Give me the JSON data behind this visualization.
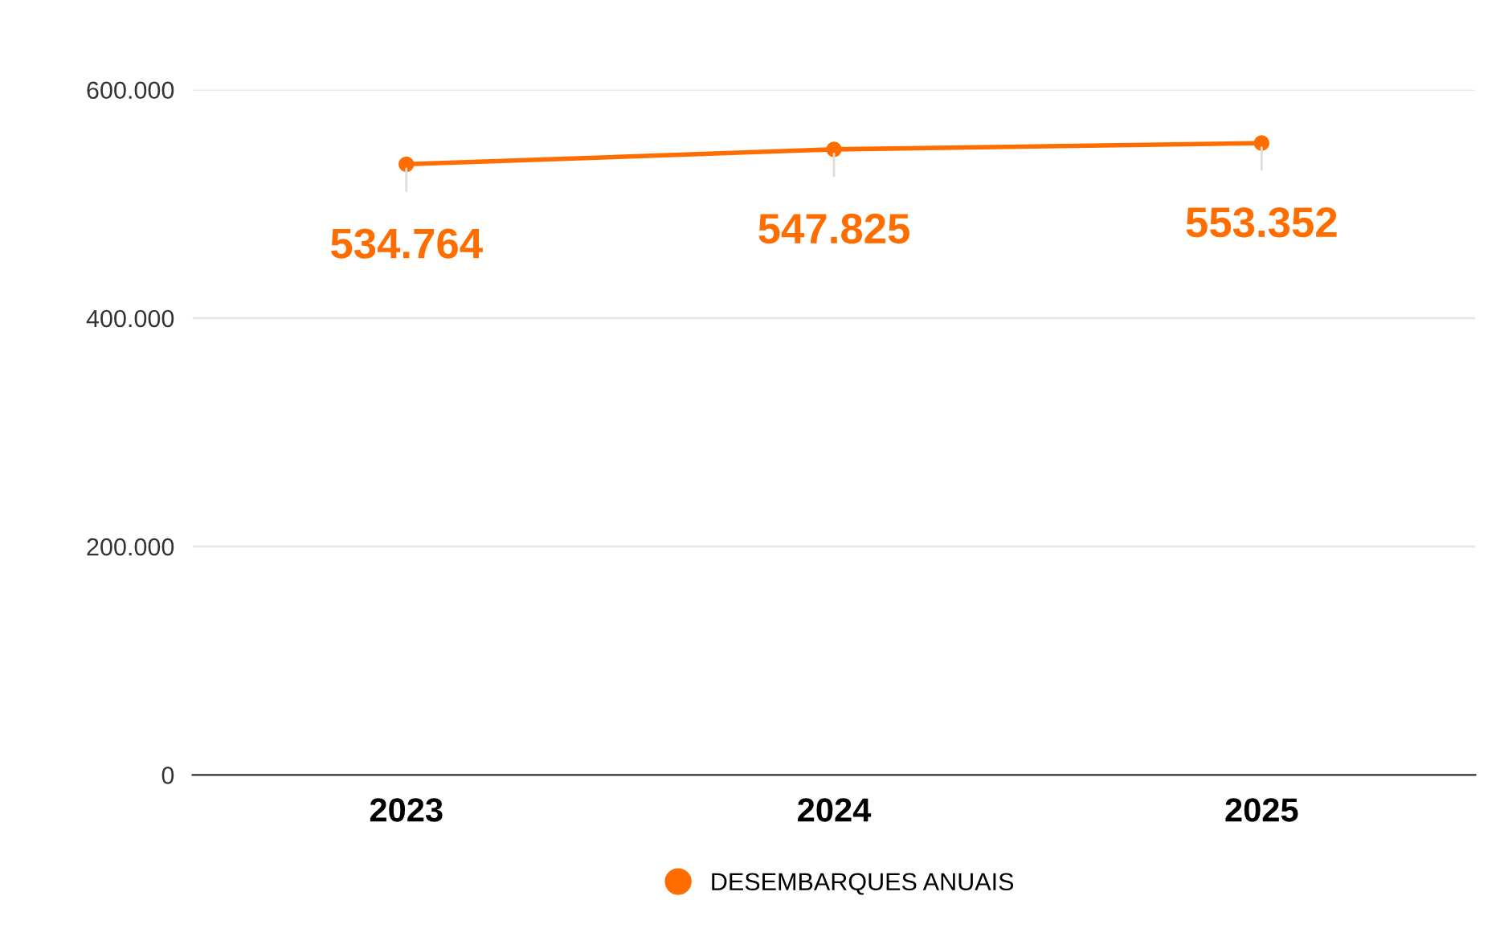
{
  "chart_data": {
    "type": "line",
    "categories": [
      "2023",
      "2024",
      "2025"
    ],
    "series": [
      {
        "name": "DESEMBARQUES ANUAIS",
        "color": "#ff6d01",
        "values": [
          534764,
          547825,
          553352
        ],
        "value_labels": [
          "534.764",
          "547.825",
          "553.352"
        ]
      }
    ],
    "ylim": [
      0,
      600000
    ],
    "yticks": [
      0,
      {
        "value": 200000,
        "label": "200.000"
      },
      {
        "value": 400000,
        "label": "400.000"
      },
      {
        "value": 600000,
        "label": "600.000"
      }
    ],
    "grid": "y",
    "legend": "bottom",
    "marker": "circle",
    "line_style": "solid"
  }
}
